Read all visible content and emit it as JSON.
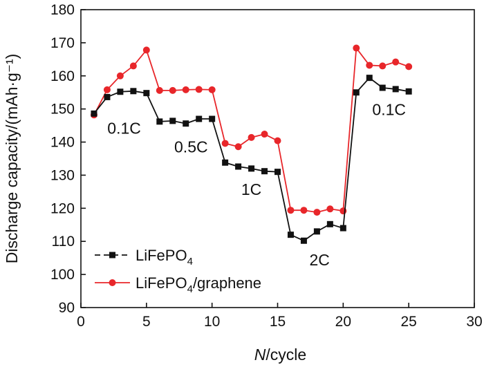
{
  "chart_data": {
    "type": "line",
    "title": "",
    "xlabel": {
      "italic": "N",
      "rest": "/cycle"
    },
    "ylabel": "Discharge capacity/(mAh·g⁻¹)",
    "xlim": [
      0,
      30
    ],
    "ylim": [
      90,
      180
    ],
    "xticks": [
      0,
      5,
      10,
      15,
      20,
      25,
      30
    ],
    "yticks": [
      90,
      100,
      110,
      120,
      130,
      140,
      150,
      160,
      170,
      180
    ],
    "grid": false,
    "legend_position": "bottom-left",
    "series": [
      {
        "name": "LiFePO4",
        "legend_parts": [
          "LiFePO",
          "4",
          ""
        ],
        "color": "#111111",
        "marker": "square",
        "x": [
          1,
          2,
          3,
          4,
          5,
          6,
          7,
          8,
          9,
          10,
          11,
          12,
          13,
          14,
          15,
          16,
          17,
          18,
          19,
          20,
          21,
          22,
          23,
          24,
          25
        ],
        "y": [
          148.6,
          153.6,
          155.2,
          155.4,
          154.8,
          146.2,
          146.4,
          145.6,
          147.0,
          147.0,
          133.8,
          132.6,
          132.0,
          131.2,
          131.0,
          112.0,
          110.2,
          113.0,
          115.2,
          114.0,
          155.0,
          159.4,
          156.4,
          156.0,
          155.3
        ]
      },
      {
        "name": "LiFePO4/graphene",
        "legend_parts": [
          "LiFePO",
          "4",
          "/graphene"
        ],
        "color": "#e8262a",
        "marker": "circle",
        "x": [
          1,
          2,
          3,
          4,
          5,
          6,
          7,
          8,
          9,
          10,
          11,
          12,
          13,
          14,
          15,
          16,
          17,
          18,
          19,
          20,
          21,
          22,
          23,
          24,
          25
        ],
        "y": [
          148.2,
          155.8,
          160.0,
          163.0,
          167.8,
          155.6,
          155.6,
          155.8,
          155.9,
          155.8,
          139.6,
          138.6,
          141.4,
          142.4,
          140.4,
          119.4,
          119.4,
          118.8,
          119.8,
          119.2,
          168.4,
          163.2,
          163.0,
          164.2,
          162.8
        ]
      }
    ],
    "annotations": [
      {
        "text": "0.1C",
        "x": 3.3,
        "y": 144.2
      },
      {
        "text": "0.5C",
        "x": 8.4,
        "y": 138.6
      },
      {
        "text": "1C",
        "x": 13.0,
        "y": 125.7
      },
      {
        "text": "2C",
        "x": 18.2,
        "y": 104.4
      },
      {
        "text": "0.1C",
        "x": 23.5,
        "y": 149.8
      }
    ]
  }
}
